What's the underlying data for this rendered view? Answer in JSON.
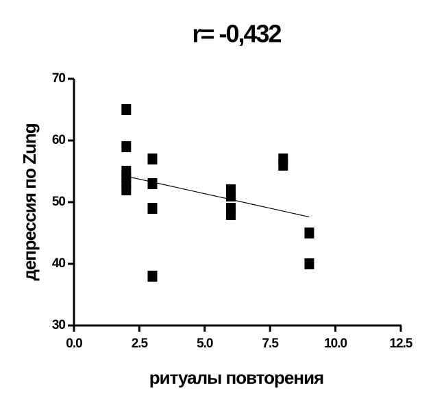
{
  "chart_data": {
    "type": "scatter",
    "title": "r= -0,432",
    "x_label": "ритуалы повторения",
    "y_label": "депрессия по Zung",
    "series": [
      {
        "color": "#000000",
        "x": [
          2,
          2,
          2,
          2,
          2,
          2,
          3,
          3,
          3,
          3,
          6,
          6,
          6,
          6,
          8,
          8,
          9,
          9
        ],
        "values": [
          65,
          59,
          55,
          54,
          53,
          52,
          57,
          53,
          49,
          38,
          52,
          51,
          49,
          48,
          57,
          56,
          45,
          40
        ]
      }
    ],
    "fit_line": {
      "x": [
        2,
        9
      ],
      "y": [
        54.2,
        47.6
      ],
      "color": "#000000"
    },
    "xlim": [
      0,
      12.5
    ],
    "ylim": [
      30,
      70
    ],
    "xticks": [
      {
        "value": 0,
        "label": "0.0"
      },
      2.5,
      {
        "value": 5,
        "label": "5.0"
      },
      7.5,
      {
        "value": 10,
        "label": "10.0"
      },
      12.5
    ],
    "yticks": [
      30,
      40,
      50,
      60,
      70
    ],
    "grid": false
  }
}
